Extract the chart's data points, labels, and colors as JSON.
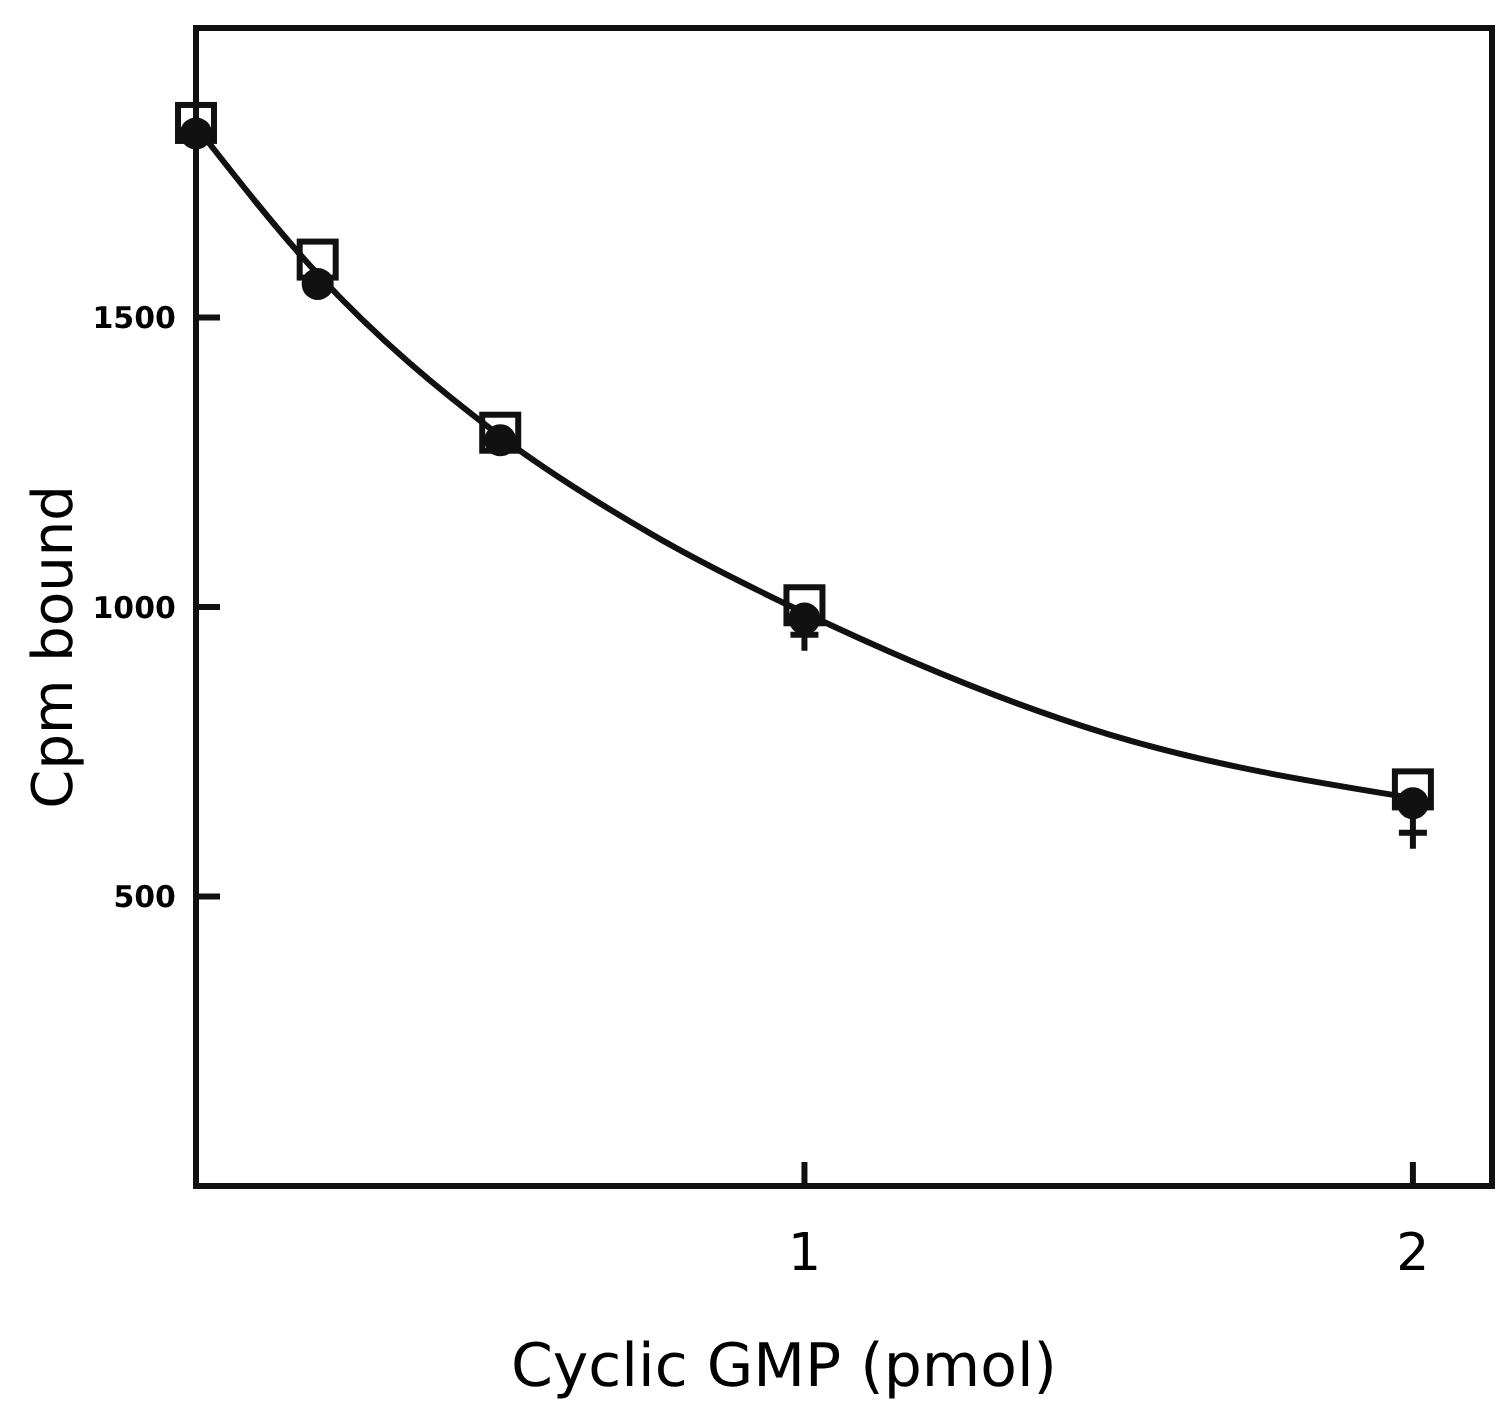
{
  "chart_data": {
    "type": "scatter",
    "xlabel": "Cyclic GMP (pmol)",
    "ylabel": "Cpm bound",
    "xlim": [
      0,
      2.13
    ],
    "ylim": [
      0,
      2000
    ],
    "xticks": [
      1,
      2
    ],
    "yticks": [
      500,
      1000,
      1500
    ],
    "grid": false,
    "x": [
      0,
      0.2,
      0.5,
      1,
      2
    ],
    "series": [
      {
        "marker": "square",
        "color": "#111111",
        "values": [
          1836,
          1600,
          1301,
          1003,
          685
        ]
      },
      {
        "marker": "circle",
        "color": "#111111",
        "values": [
          1818,
          1558,
          1288,
          980,
          661
        ]
      },
      {
        "marker": "cross",
        "color": "#111111",
        "values": [
          null,
          null,
          null,
          952,
          610
        ]
      },
      {
        "type": "line",
        "marker": "none",
        "line_style": "solid",
        "color": "#111111",
        "x": [
          0,
          0.2,
          0.5,
          0.75,
          1,
          1.5,
          2
        ],
        "values": [
          1830,
          1575,
          1295,
          1125,
          990,
          780,
          670
        ]
      }
    ]
  }
}
